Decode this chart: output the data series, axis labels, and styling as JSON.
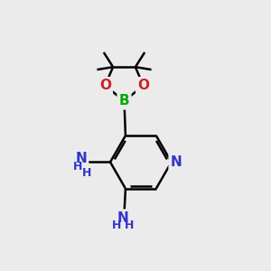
{
  "bg_color": "#ebebeb",
  "atom_colors": {
    "C": "#000000",
    "N": "#3333cc",
    "O": "#cc2222",
    "B": "#00aa00",
    "H": "#555555"
  },
  "bond_color": "#000000",
  "bond_width": 1.8,
  "figsize": [
    3.0,
    3.0
  ],
  "dpi": 100,
  "scale": 1.0
}
